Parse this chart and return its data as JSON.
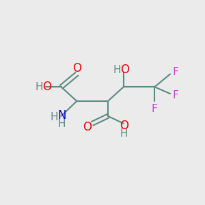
{
  "background_color": "#ebebeb",
  "bond_color": "#5a8a80",
  "colors": {
    "O": "#ee0000",
    "N": "#0000cc",
    "F": "#cc44cc",
    "H": "#5a8a80"
  },
  "figsize": [
    3.0,
    3.0
  ],
  "dpi": 100
}
